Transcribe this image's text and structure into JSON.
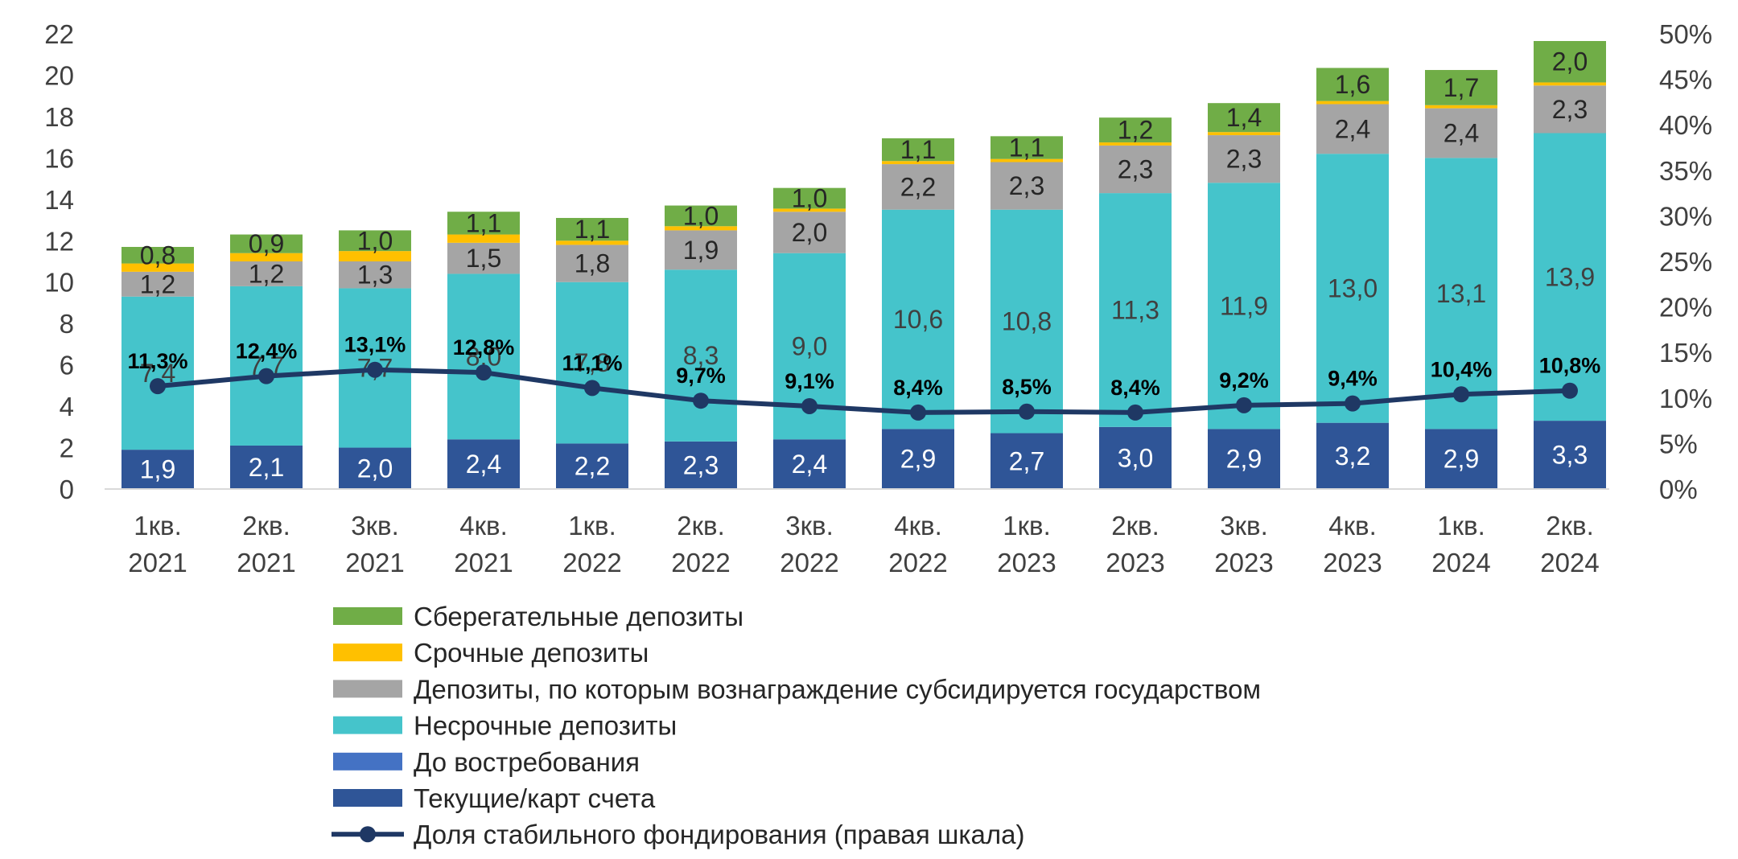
{
  "chart_data": {
    "type": "bar",
    "stacked": true,
    "categories": [
      [
        "1кв.",
        "2021"
      ],
      [
        "2кв.",
        "2021"
      ],
      [
        "3кв.",
        "2021"
      ],
      [
        "4кв.",
        "2021"
      ],
      [
        "1кв.",
        "2022"
      ],
      [
        "2кв.",
        "2022"
      ],
      [
        "3кв.",
        "2022"
      ],
      [
        "4кв.",
        "2022"
      ],
      [
        "1кв.",
        "2023"
      ],
      [
        "2кв.",
        "2023"
      ],
      [
        "3кв.",
        "2023"
      ],
      [
        "4кв.",
        "2023"
      ],
      [
        "1кв.",
        "2024"
      ],
      [
        "2кв.",
        "2024"
      ]
    ],
    "series": [
      {
        "name": "Текущие/карт счета",
        "color": "#2F5597",
        "label_color": "#ffffff",
        "values": [
          1.9,
          2.1,
          2.0,
          2.4,
          2.2,
          2.3,
          2.4,
          2.9,
          2.7,
          3.0,
          2.9,
          3.2,
          2.9,
          3.3
        ],
        "labels": [
          "1,9",
          "2,1",
          "2,0",
          "2,4",
          "2,2",
          "2,3",
          "2,4",
          "2,9",
          "2,7",
          "3,0",
          "2,9",
          "3,2",
          "2,9",
          "3,3"
        ]
      },
      {
        "name": "До востребования",
        "color": "#4472C4",
        "label_color": "#ffffff",
        "values": [
          0,
          0,
          0,
          0,
          0,
          0,
          0,
          0,
          0,
          0,
          0,
          0,
          0,
          0
        ],
        "labels": []
      },
      {
        "name": "Несрочные депозиты",
        "color": "#45C4CB",
        "label_color": "#404040",
        "values": [
          7.4,
          7.7,
          7.7,
          8.0,
          7.8,
          8.3,
          9.0,
          10.6,
          10.8,
          11.3,
          11.9,
          13.0,
          13.1,
          13.9
        ],
        "labels": [
          "7,4",
          "7,7",
          "7,7",
          "8,0",
          "7,8",
          "8,3",
          "9,0",
          "10,6",
          "10,8",
          "11,3",
          "11,9",
          "13,0",
          "13,1",
          "13,9"
        ]
      },
      {
        "name": "Депозиты, по которым вознаграждение субсидируется государством",
        "color": "#A5A5A5",
        "label_color": "#262626",
        "values": [
          1.2,
          1.2,
          1.3,
          1.5,
          1.8,
          1.9,
          2.0,
          2.2,
          2.3,
          2.3,
          2.3,
          2.4,
          2.4,
          2.3
        ],
        "labels": [
          "1,2",
          "1,2",
          "1,3",
          "1,5",
          "1,8",
          "1,9",
          "2,0",
          "2,2",
          "2,3",
          "2,3",
          "2,3",
          "2,4",
          "2,4",
          "2,3"
        ]
      },
      {
        "name": "Срочные депозиты",
        "color": "#FFC000",
        "label_color": "#262626",
        "values": [
          0.4,
          0.4,
          0.5,
          0.4,
          0.2,
          0.2,
          0.15,
          0.15,
          0.15,
          0.15,
          0.15,
          0.15,
          0.15,
          0.15
        ],
        "labels": []
      },
      {
        "name": "Сберегательные депозиты",
        "color": "#70AD47",
        "label_color": "#262626",
        "values": [
          0.8,
          0.9,
          1.0,
          1.1,
          1.1,
          1.0,
          1.0,
          1.1,
          1.1,
          1.2,
          1.4,
          1.6,
          1.7,
          2.0
        ],
        "labels": [
          "0,8",
          "0,9",
          "1,0",
          "1,1",
          "1,1",
          "1,0",
          "1,0",
          "1,1",
          "1,1",
          "1,2",
          "1,4",
          "1,6",
          "1,7",
          "2,0"
        ]
      }
    ],
    "line_series": {
      "name": "Доля стабильного фондирования (правая шкала)",
      "color": "#1F3864",
      "axis": "right",
      "values": [
        11.3,
        12.4,
        13.1,
        12.8,
        11.1,
        9.7,
        9.1,
        8.4,
        8.5,
        8.4,
        9.2,
        9.4,
        10.4,
        10.8
      ],
      "labels": [
        "11,3%",
        "12,4%",
        "13,1%",
        "12,8%",
        "11,1%",
        "9,7%",
        "9,1%",
        "8,4%",
        "8,5%",
        "8,4%",
        "9,2%",
        "9,4%",
        "10,4%",
        "10,8%"
      ]
    },
    "left_axis": {
      "ylim": [
        0,
        22
      ],
      "ticks": [
        "0",
        "2",
        "4",
        "6",
        "8",
        "10",
        "12",
        "14",
        "16",
        "18",
        "20",
        "22"
      ]
    },
    "right_axis": {
      "ylim": [
        0,
        50
      ],
      "ticks": [
        "0%",
        "5%",
        "10%",
        "15%",
        "20%",
        "25%",
        "30%",
        "35%",
        "40%",
        "45%",
        "50%"
      ]
    },
    "legend": {
      "position": "bottom",
      "items": [
        {
          "label": "Сберегательные депозиты",
          "color": "#70AD47",
          "kind": "box"
        },
        {
          "label": "Срочные депозиты",
          "color": "#FFC000",
          "kind": "box"
        },
        {
          "label": "Депозиты, по которым вознаграждение субсидируется государством",
          "color": "#A5A5A5",
          "kind": "box"
        },
        {
          "label": "Несрочные депозиты",
          "color": "#45C4CB",
          "kind": "box"
        },
        {
          "label": "До востребования",
          "color": "#4472C4",
          "kind": "box"
        },
        {
          "label": "Текущие/карт счета",
          "color": "#2F5597",
          "kind": "box"
        },
        {
          "label": "Доля стабильного фондирования (правая шкала)",
          "color": "#1F3864",
          "kind": "line"
        }
      ]
    },
    "grid": false
  }
}
